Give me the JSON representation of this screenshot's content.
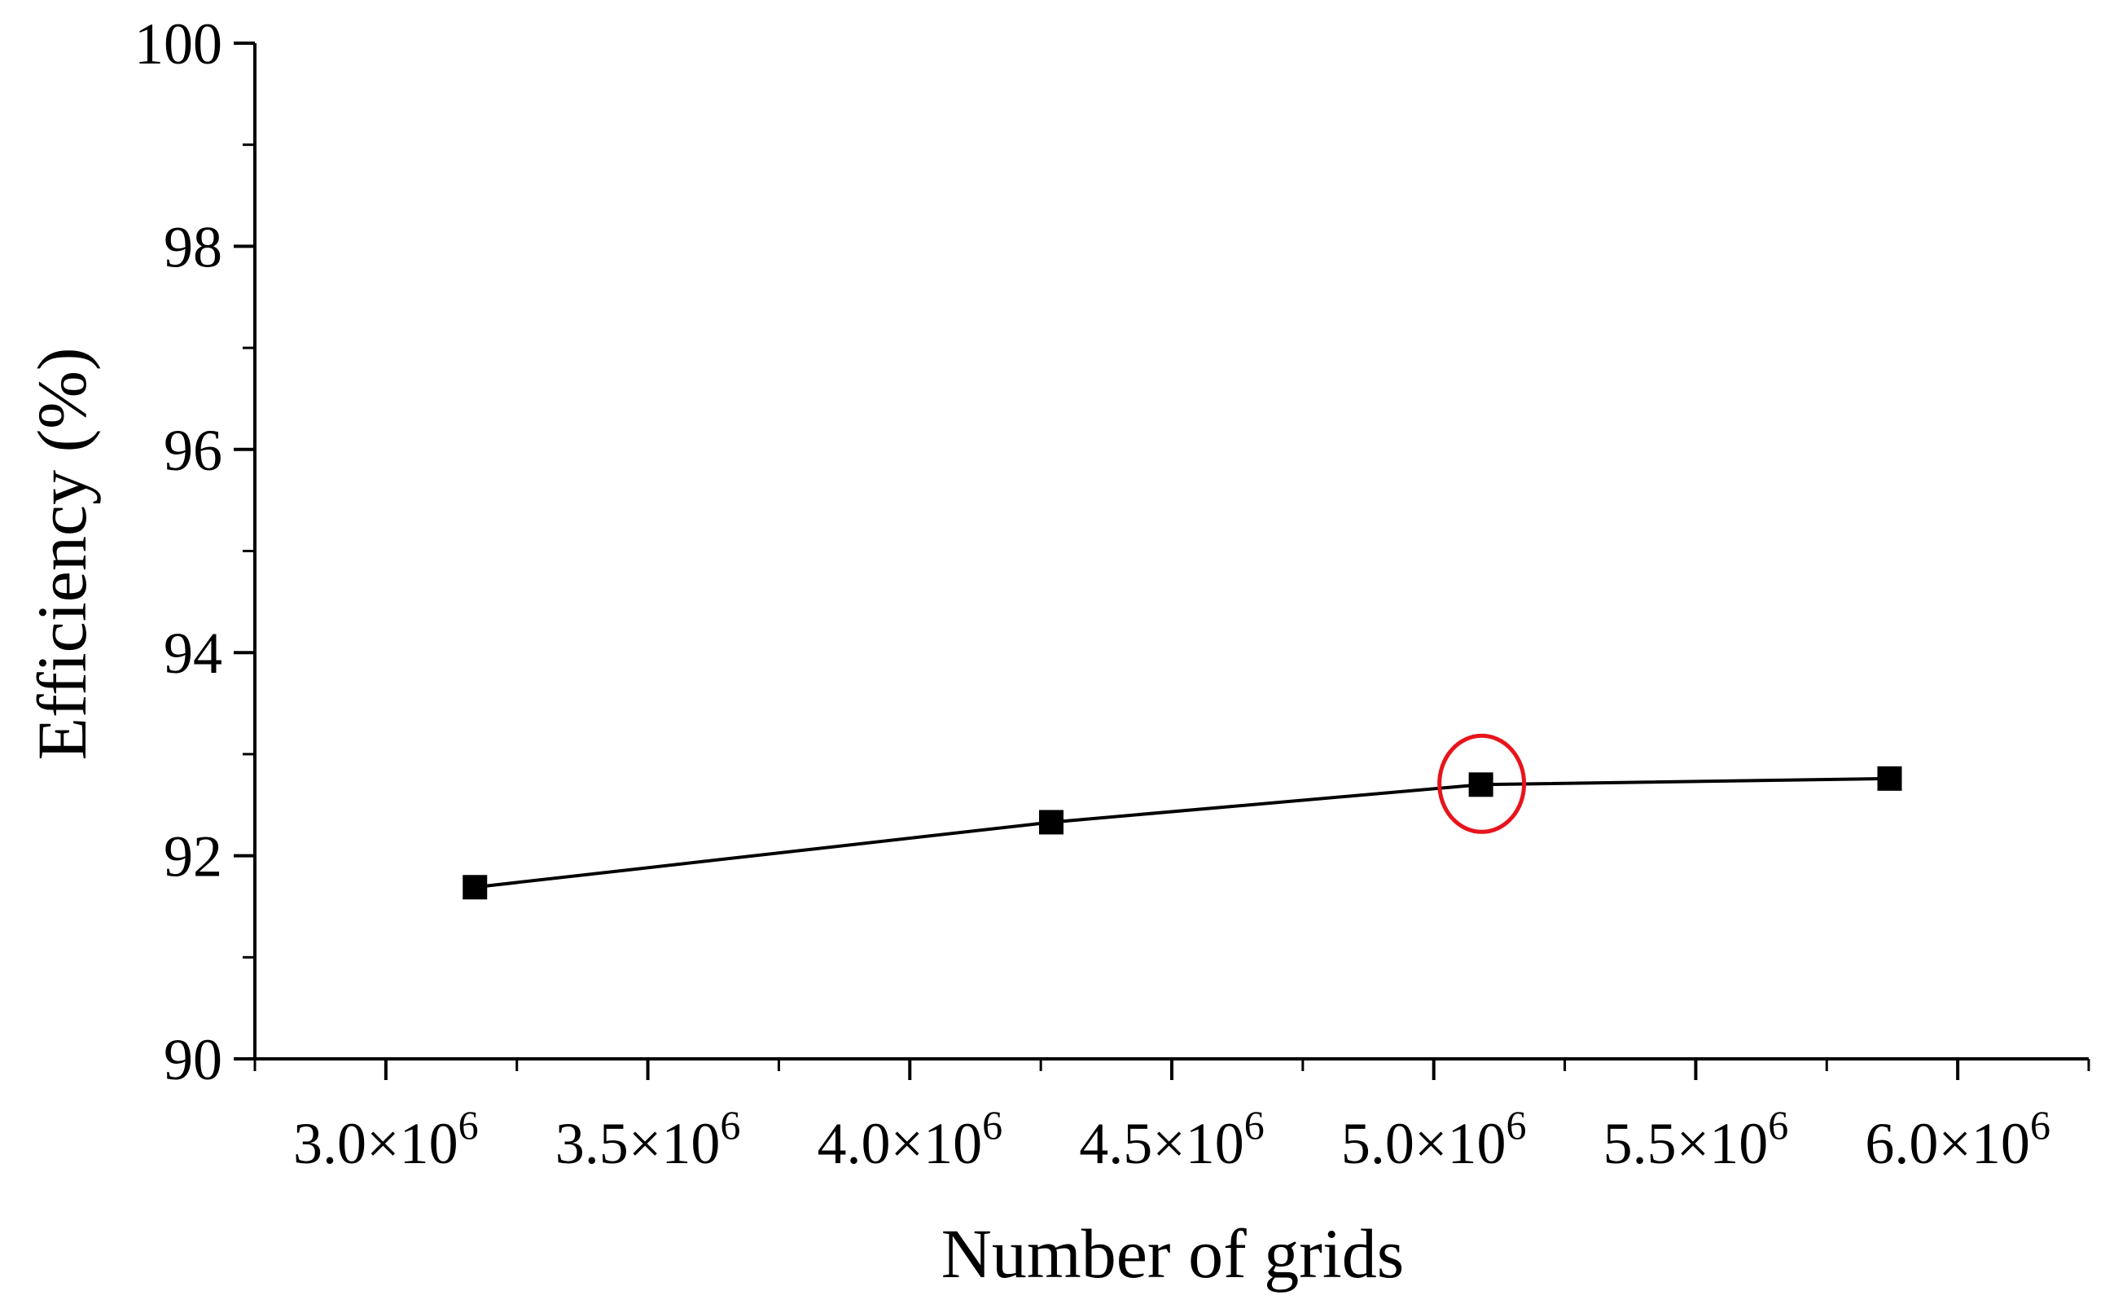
{
  "chart_data": {
    "type": "line",
    "xlabel": "Number of grids",
    "ylabel": "Efficiency (%)",
    "xlim": [
      2750000,
      6250000
    ],
    "ylim": [
      90,
      100
    ],
    "xticks": [
      3000000,
      3500000,
      4000000,
      4500000,
      5000000,
      5500000,
      6000000
    ],
    "xtick_labels": [
      {
        "mantissa": "3.0×10",
        "exp": "6"
      },
      {
        "mantissa": "3.5×10",
        "exp": "6"
      },
      {
        "mantissa": "4.0×10",
        "exp": "6"
      },
      {
        "mantissa": "4.5×10",
        "exp": "6"
      },
      {
        "mantissa": "5.0×10",
        "exp": "6"
      },
      {
        "mantissa": "5.5×10",
        "exp": "6"
      },
      {
        "mantissa": "6.0×10",
        "exp": "6"
      }
    ],
    "yticks": [
      90,
      92,
      94,
      96,
      98,
      100
    ],
    "ytick_labels": [
      "90",
      "92",
      "94",
      "96",
      "98",
      "100"
    ],
    "series": [
      {
        "x": [
          3170000,
          4270000,
          5090000,
          5870000
        ],
        "y": [
          91.69,
          92.33,
          92.7,
          92.76
        ],
        "marker": "square",
        "color": "#000000"
      }
    ],
    "annotations": [
      {
        "type": "circle",
        "x": 5090000,
        "y": 92.7,
        "color": "#e8141b"
      }
    ],
    "grid": false
  }
}
